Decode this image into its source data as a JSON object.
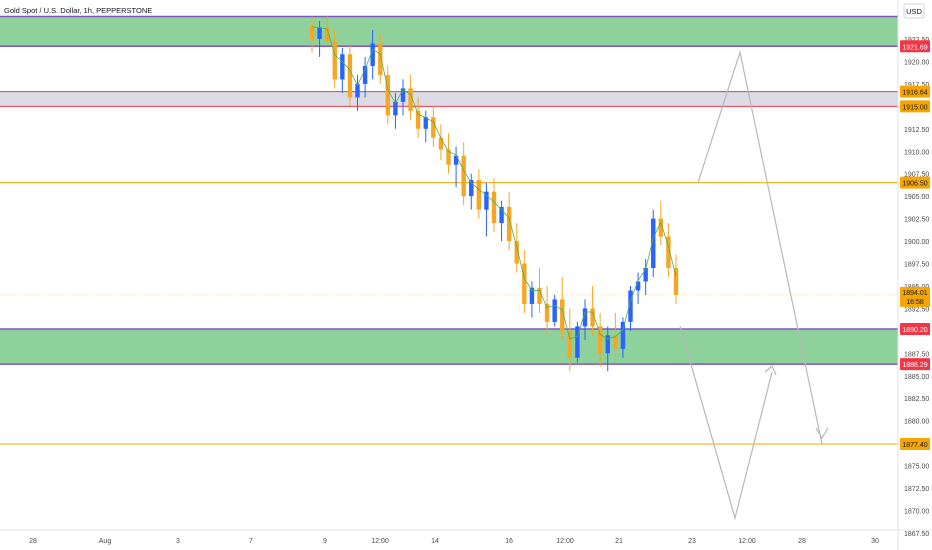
{
  "header": {
    "symbol_title": "Gold Spot / U.S. Dollar, 1h, PEPPERSTONE"
  },
  "currency_button": "USD",
  "colors": {
    "zone_green": "#8fd19b",
    "zone_border_purple": "#7e57c2",
    "zone_grey": "#dcdce6",
    "line_red": "#f23645",
    "line_orange": "#f7a600",
    "candle_blue": "#2962ff",
    "candle_orange": "#f5a623",
    "trend_green": "#4caf50",
    "projection_grey": "#b8b8b8",
    "axis_text": "#4a4a4a"
  },
  "chart_data": {
    "type": "candlestick",
    "title": "Gold Spot / U.S. Dollar, 1h, PEPPERSTONE",
    "ylim": [
      1866.5,
      1925.0
    ],
    "y_ticks": [
      "1922.50",
      "1920.00",
      "1917.50",
      "1915.00",
      "1912.50",
      "1910.00",
      "1907.50",
      "1905.00",
      "1902.50",
      "1900.00",
      "1897.50",
      "1895.00",
      "1892.50",
      "1890.00",
      "1887.50",
      "1885.00",
      "1882.50",
      "1880.00",
      "1877.50",
      "1875.00",
      "1872.50",
      "1870.00",
      "1867.50"
    ],
    "x_ticks": [
      "28",
      "Aug",
      "3",
      "7",
      "9",
      "12:00",
      "14",
      "16",
      "12:00",
      "21",
      "23",
      "12:00",
      "28",
      "30"
    ],
    "price_labels": [
      {
        "text": "1921.69",
        "value": 1921.69,
        "color": "#f23645"
      },
      {
        "text": "1916.64",
        "value": 1916.64,
        "color": "#f7a600"
      },
      {
        "text": "1915.00",
        "value": 1915.0,
        "color": "#f7a600"
      },
      {
        "text": "1906.50",
        "value": 1906.5,
        "color": "#f7a600"
      },
      {
        "text": "1890.20",
        "value": 1890.2,
        "color": "#f23645"
      },
      {
        "text": "1886.29",
        "value": 1886.29,
        "color": "#f23645"
      },
      {
        "text": "1877.40",
        "value": 1877.4,
        "color": "#f7a600"
      }
    ],
    "current_price": {
      "price": "1894.01",
      "countdown": "16:58",
      "value": 1894.01
    },
    "zones": [
      {
        "name": "supply-zone",
        "low": 1921.69,
        "high": 1925.0,
        "kind": "green"
      },
      {
        "name": "resistance-band",
        "low": 1915.0,
        "high": 1916.64,
        "kind": "grey"
      },
      {
        "name": "demand-zone",
        "low": 1886.29,
        "high": 1890.2,
        "kind": "green"
      }
    ],
    "levels": [
      {
        "name": "level-1906-50",
        "value": 1906.5
      },
      {
        "name": "level-1877-40",
        "value": 1877.4
      }
    ],
    "candles": [
      [
        1924.0,
        1925.0,
        1921.0,
        1922.5
      ],
      [
        1922.5,
        1924.5,
        1920.5,
        1923.8
      ],
      [
        1923.8,
        1925.0,
        1922.0,
        1922.2
      ],
      [
        1922.2,
        1923.5,
        1917.0,
        1918.0
      ],
      [
        1918.0,
        1921.5,
        1916.5,
        1920.8
      ],
      [
        1920.8,
        1922.0,
        1915.0,
        1916.0
      ],
      [
        1916.0,
        1918.5,
        1914.5,
        1917.5
      ],
      [
        1917.5,
        1920.5,
        1916.0,
        1919.5
      ],
      [
        1919.5,
        1923.5,
        1918.0,
        1922.0
      ],
      [
        1922.0,
        1923.0,
        1917.5,
        1918.5
      ],
      [
        1918.5,
        1919.5,
        1913.0,
        1914.0
      ],
      [
        1914.0,
        1916.5,
        1912.5,
        1915.5
      ],
      [
        1915.5,
        1918.0,
        1914.0,
        1917.0
      ],
      [
        1917.0,
        1918.5,
        1913.5,
        1914.5
      ],
      [
        1914.5,
        1916.0,
        1911.5,
        1912.5
      ],
      [
        1912.5,
        1914.5,
        1911.0,
        1913.8
      ],
      [
        1913.8,
        1915.0,
        1910.5,
        1911.5
      ],
      [
        1911.5,
        1913.0,
        1909.0,
        1910.2
      ],
      [
        1910.2,
        1912.0,
        1907.5,
        1908.5
      ],
      [
        1908.5,
        1910.5,
        1906.0,
        1909.5
      ],
      [
        1909.5,
        1911.0,
        1904.0,
        1905.0
      ],
      [
        1905.0,
        1907.5,
        1903.5,
        1906.8
      ],
      [
        1906.8,
        1908.0,
        1902.5,
        1903.5
      ],
      [
        1903.5,
        1906.5,
        1900.5,
        1905.5
      ],
      [
        1905.5,
        1907.0,
        1901.0,
        1902.0
      ],
      [
        1902.0,
        1904.5,
        1900.0,
        1903.8
      ],
      [
        1903.8,
        1905.5,
        1899.0,
        1900.0
      ],
      [
        1900.0,
        1902.0,
        1896.5,
        1897.5
      ],
      [
        1897.5,
        1899.0,
        1892.0,
        1893.0
      ],
      [
        1893.0,
        1895.5,
        1891.5,
        1894.8
      ],
      [
        1894.8,
        1897.0,
        1892.0,
        1893.0
      ],
      [
        1893.0,
        1895.0,
        1889.5,
        1891.0
      ],
      [
        1891.0,
        1894.0,
        1890.5,
        1893.5
      ],
      [
        1893.5,
        1896.0,
        1889.0,
        1890.0
      ],
      [
        1890.0,
        1892.5,
        1885.5,
        1887.0
      ],
      [
        1887.0,
        1891.0,
        1886.5,
        1890.5
      ],
      [
        1890.5,
        1893.5,
        1889.0,
        1892.5
      ],
      [
        1892.5,
        1895.0,
        1889.5,
        1890.5
      ],
      [
        1890.5,
        1892.0,
        1886.0,
        1887.5
      ],
      [
        1887.5,
        1890.5,
        1885.5,
        1889.5
      ],
      [
        1889.5,
        1892.0,
        1886.5,
        1888.0
      ],
      [
        1888.0,
        1891.5,
        1887.0,
        1891.0
      ],
      [
        1891.0,
        1895.0,
        1890.0,
        1894.5
      ],
      [
        1894.5,
        1896.5,
        1893.0,
        1895.5
      ],
      [
        1895.5,
        1898.0,
        1894.0,
        1897.0
      ],
      [
        1897.0,
        1903.5,
        1896.0,
        1902.5
      ],
      [
        1902.5,
        1904.5,
        1899.5,
        1900.5
      ],
      [
        1900.5,
        1902.0,
        1896.0,
        1897.0
      ],
      [
        1897.0,
        1898.5,
        1893.0,
        1894.0
      ]
    ],
    "projection_up": [
      [
        1906.5
      ],
      [
        1921.69
      ]
    ],
    "projection_segments": [
      [
        [
          0,
          1906.5
        ],
        [
          1,
          1921.69
        ]
      ],
      [
        [
          1,
          1921.69
        ],
        [
          2,
          1877.4
        ]
      ],
      [
        [
          3,
          1890.2
        ],
        [
          4,
          1867.5
        ]
      ],
      [
        [
          4,
          1867.5
        ],
        [
          5,
          1886.0
        ]
      ]
    ]
  }
}
